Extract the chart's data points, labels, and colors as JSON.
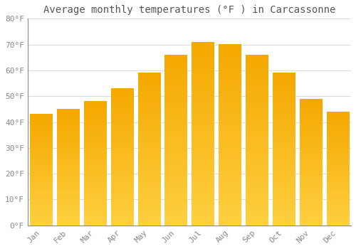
{
  "title": "Average monthly temperatures (°F ) in Carcassonne",
  "months": [
    "Jan",
    "Feb",
    "Mar",
    "Apr",
    "May",
    "Jun",
    "Jul",
    "Aug",
    "Sep",
    "Oct",
    "Nov",
    "Dec"
  ],
  "values": [
    43,
    45,
    48,
    53,
    59,
    66,
    71,
    70,
    66,
    59,
    49,
    44
  ],
  "bar_color_dark": "#F5A800",
  "bar_color_light": "#FFD040",
  "ylim": [
    0,
    80
  ],
  "yticks": [
    0,
    10,
    20,
    30,
    40,
    50,
    60,
    70,
    80
  ],
  "ytick_labels": [
    "0°F",
    "10°F",
    "20°F",
    "30°F",
    "40°F",
    "50°F",
    "60°F",
    "70°F",
    "80°F"
  ],
  "background_color": "#FFFFFF",
  "grid_color": "#DDDDDD",
  "title_fontsize": 10,
  "tick_fontsize": 8,
  "font_family": "monospace"
}
